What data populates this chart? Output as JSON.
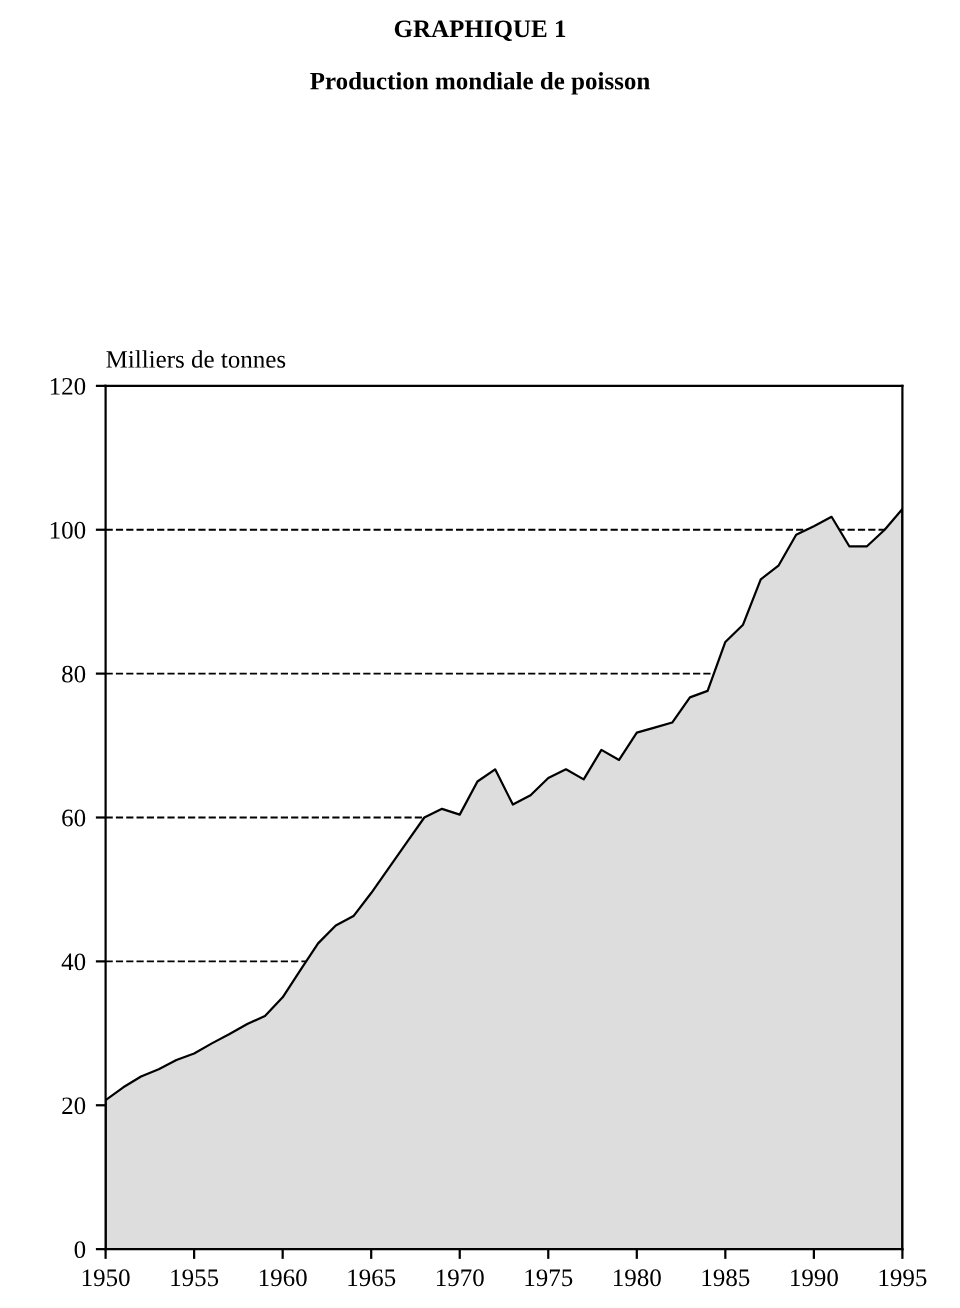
{
  "chart_data": {
    "type": "area",
    "title": "GRAPHIQUE 1",
    "subtitle": "Production mondiale de poisson",
    "ylabel": "Milliers de tonnes",
    "x": [
      1950,
      1951,
      1952,
      1953,
      1954,
      1955,
      1956,
      1957,
      1958,
      1959,
      1960,
      1961,
      1962,
      1963,
      1964,
      1965,
      1966,
      1967,
      1968,
      1969,
      1970,
      1971,
      1972,
      1973,
      1974,
      1975,
      1976,
      1977,
      1978,
      1979,
      1980,
      1981,
      1982,
      1983,
      1984,
      1985,
      1986,
      1987,
      1988,
      1989,
      1990,
      1991,
      1992,
      1993,
      1994,
      1995
    ],
    "series": [
      {
        "color": "#dddddd",
        "values": [
          20.7,
          22.5,
          24,
          25,
          26.3,
          27.2,
          28.6,
          29.9,
          31.3,
          32.4,
          35,
          38.8,
          42.5,
          45,
          46.3,
          49.5,
          53,
          56.5,
          60,
          61.2,
          60.4,
          65,
          66.7,
          61.8,
          63.1,
          65.5,
          66.7,
          65.3,
          69.4,
          68,
          71.8,
          72.5,
          73.2,
          76.7,
          77.6,
          84.4,
          86.8,
          93.1,
          95,
          99.3,
          100.5,
          101.8,
          97.7,
          97.7,
          100,
          102.9
        ]
      }
    ],
    "xlim": [
      1950,
      1995
    ],
    "xticks": [
      1950,
      1955,
      1960,
      1965,
      1970,
      1975,
      1980,
      1985,
      1990,
      1995
    ],
    "ylim": [
      0,
      120
    ],
    "yticks": [
      0,
      20,
      40,
      60,
      80,
      100,
      120
    ],
    "grid": "y",
    "line_style": "dashed"
  }
}
